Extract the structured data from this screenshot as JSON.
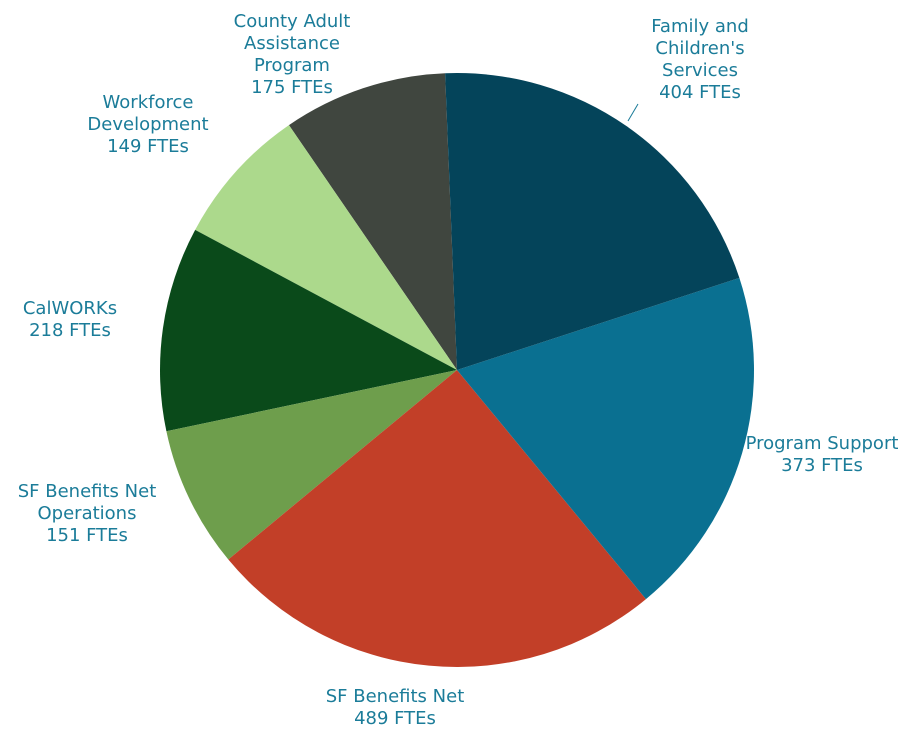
{
  "chart_data": {
    "type": "pie",
    "categories": [
      "Family and Children's Services",
      "Program Support",
      "SF Benefits Net",
      "SF Benefits Net Operations",
      "CalWORKs",
      "Workforce Development",
      "County Adult Assistance Program"
    ],
    "values": [
      404,
      373,
      489,
      151,
      218,
      149,
      175
    ],
    "value_labels": [
      "404 FTEs",
      "373 FTEs",
      "489 FTEs",
      "151 FTEs",
      "218 FTEs",
      "149 FTEs",
      "175 FTEs"
    ],
    "colors": [
      "#04445a",
      "#0a7091",
      "#c23f28",
      "#6e9e4c",
      "#0a4a1a",
      "#acd98c",
      "#40463f"
    ]
  }
}
